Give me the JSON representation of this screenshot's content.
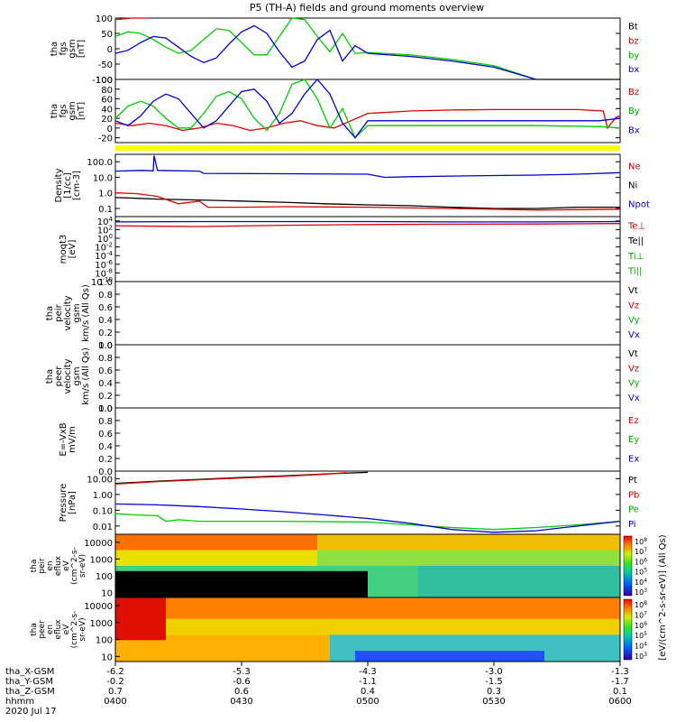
{
  "chart_data": {
    "type": "line",
    "title": "P5 (TH-A) fields and ground moments overview",
    "x_ticks": [
      "0400",
      "0430",
      "0500",
      "0530",
      "0600"
    ],
    "x_range_minutes": [
      0,
      120
    ],
    "ephemeris": {
      "labels": [
        "tha_X-GSM",
        "tha_Y-GSM",
        "tha_Z-GSM",
        "hhmm",
        "2020 Jul 17"
      ],
      "x_gsm": [
        "-6.2",
        "-5.3",
        "-4.3",
        "-3.0",
        "-1.3"
      ],
      "y_gsm": [
        "-0.2",
        "-0.6",
        "-1.1",
        "-1.5",
        "-1.7"
      ],
      "z_gsm": [
        "0.7",
        "0.6",
        "0.4",
        "0.3",
        "0.1"
      ]
    },
    "panels": [
      {
        "id": "fgs_gsm",
        "ylabel": [
          "tha",
          "fgs",
          "gsm",
          "[nT]"
        ],
        "ticks": [
          "100",
          "50",
          "0",
          "-50",
          "-100"
        ],
        "ylim": [
          -100,
          100
        ],
        "scale": "linear",
        "legend": [
          {
            "label": "Bt",
            "color": "#000000"
          },
          {
            "label": "bz",
            "color": "#cc0000"
          },
          {
            "label": "by",
            "color": "#00aa00"
          },
          {
            "label": "bx",
            "color": "#0000cc"
          }
        ],
        "series": [
          {
            "name": "bz",
            "color": "#dd0000",
            "x": [
              0,
              4,
              8
            ],
            "y": [
              95,
              102,
              110
            ]
          },
          {
            "name": "by",
            "color": "#00cc00",
            "x": [
              0,
              3,
              6,
              9,
              12,
              15,
              18,
              21,
              24,
              27,
              30,
              33,
              36,
              39,
              42,
              45,
              48,
              51,
              54,
              57,
              60,
              70,
              80,
              90,
              100
            ],
            "y": [
              40,
              55,
              50,
              30,
              5,
              -15,
              -5,
              30,
              65,
              60,
              20,
              -20,
              -20,
              40,
              100,
              95,
              40,
              -10,
              50,
              -15,
              -12,
              -20,
              -35,
              -55,
              -100
            ]
          },
          {
            "name": "bx",
            "color": "#0000cc",
            "x": [
              0,
              3,
              6,
              9,
              12,
              15,
              18,
              21,
              24,
              27,
              30,
              33,
              36,
              39,
              42,
              45,
              48,
              51,
              54,
              57,
              60,
              70,
              80,
              90,
              100,
              120
            ],
            "y": [
              -15,
              -5,
              20,
              40,
              35,
              5,
              -25,
              -45,
              -30,
              15,
              55,
              75,
              50,
              -10,
              -60,
              -40,
              30,
              60,
              -40,
              10,
              -15,
              -25,
              -40,
              -60,
              -100,
              -100
            ]
          }
        ]
      },
      {
        "id": "fgs_gsm_2",
        "ylabel": [
          "tha",
          "fgs",
          "gsm",
          "[nT]"
        ],
        "ticks": [
          "100",
          "80",
          "60",
          "40",
          "20",
          "0",
          "-20"
        ],
        "ylim": [
          -30,
          100
        ],
        "scale": "linear",
        "legend": [
          {
            "label": "Bz",
            "color": "#cc0000"
          },
          {
            "label": "By",
            "color": "#00aa00"
          },
          {
            "label": "Bx",
            "color": "#0000cc"
          }
        ],
        "series": [
          {
            "name": "Bz",
            "color": "#dd0000",
            "x": [
              0,
              4,
              8,
              12,
              16,
              20,
              24,
              28,
              32,
              36,
              40,
              44,
              48,
              52,
              56,
              60,
              70,
              80,
              90,
              100,
              110,
              116,
              117,
              119,
              120
            ],
            "y": [
              10,
              5,
              10,
              5,
              -5,
              0,
              10,
              5,
              -5,
              0,
              10,
              15,
              5,
              0,
              15,
              30,
              35,
              37,
              38,
              38,
              38,
              35,
              0,
              22,
              25
            ]
          },
          {
            "name": "By",
            "color": "#00cc00",
            "x": [
              0,
              3,
              6,
              9,
              12,
              15,
              18,
              21,
              24,
              27,
              30,
              33,
              36,
              39,
              42,
              45,
              48,
              51,
              54,
              57,
              60,
              80,
              100,
              115,
              120
            ],
            "y": [
              20,
              45,
              55,
              45,
              20,
              0,
              0,
              30,
              65,
              75,
              60,
              20,
              -5,
              30,
              90,
              100,
              60,
              0,
              40,
              -20,
              5,
              5,
              5,
              3,
              0
            ]
          },
          {
            "name": "Bx",
            "color": "#0000cc",
            "x": [
              0,
              3,
              6,
              9,
              12,
              15,
              18,
              21,
              24,
              27,
              30,
              33,
              36,
              39,
              42,
              45,
              48,
              51,
              54,
              57,
              60,
              80,
              100,
              115,
              120
            ],
            "y": [
              15,
              5,
              25,
              55,
              70,
              60,
              30,
              0,
              15,
              45,
              75,
              80,
              55,
              10,
              30,
              70,
              100,
              70,
              10,
              -20,
              15,
              15,
              15,
              15,
              20
            ]
          }
        ]
      },
      {
        "id": "density",
        "ylabel": [
          "Density",
          "[1/cc]",
          "[cm-3]"
        ],
        "ticks": [
          "100.0",
          "10.0",
          "1.0",
          "0.1"
        ],
        "ylim": [
          0.03,
          300
        ],
        "scale": "log",
        "legend": [
          {
            "label": "Ne",
            "color": "#cc0000"
          },
          {
            "label": "Ni",
            "color": "#000000"
          },
          {
            "label": "Npot",
            "color": "#0000cc"
          }
        ],
        "series": [
          {
            "name": "Npot",
            "color": "#0000cc",
            "x": [
              0,
              6,
              9,
              9.2,
              10,
              20,
              21,
              40,
              60,
              64,
              70,
              80,
              90,
              100,
              110,
              120
            ],
            "y": [
              25,
              28,
              26,
              250,
              28,
              25,
              18,
              17,
              16,
              10,
              11,
              12,
              13,
              14,
              16,
              20
            ]
          },
          {
            "name": "Ni",
            "color": "#000000",
            "x": [
              0,
              5,
              10,
              20,
              30,
              40,
              50,
              60,
              70,
              80,
              90,
              100,
              110,
              120
            ],
            "y": [
              0.5,
              0.45,
              0.4,
              0.35,
              0.3,
              0.25,
              0.2,
              0.17,
              0.15,
              0.12,
              0.1,
              0.1,
              0.12,
              0.12
            ]
          },
          {
            "name": "Ne",
            "color": "#dd0000",
            "x": [
              0,
              5,
              10,
              15,
              20,
              22,
              30,
              40,
              60,
              80,
              100,
              120
            ],
            "y": [
              1.0,
              0.9,
              0.6,
              0.2,
              0.3,
              0.12,
              0.12,
              0.13,
              0.12,
              0.1,
              0.08,
              0.09
            ]
          }
        ]
      },
      {
        "id": "moqt3",
        "ylabel": [
          "moqt3",
          "[eV]"
        ],
        "ticks": [
          "10^4",
          "10^2",
          "10^0",
          "10^-2",
          "10^-4",
          "10^-6",
          "10^-8",
          "10^-10"
        ],
        "ylim": [
          1e-10,
          100000.0
        ],
        "scale": "log",
        "legend": [
          {
            "label": "Te⊥",
            "color": "#cc0000"
          },
          {
            "label": "Te||",
            "color": "#000000"
          },
          {
            "label": "Ti⊥",
            "color": "#00aa00"
          },
          {
            "label": "Ti||",
            "color": "#00aa00"
          }
        ],
        "series": [
          {
            "name": "Te⊥",
            "color": "#dd0000",
            "x": [
              0,
              10,
              20,
              40,
              60,
              80,
              100,
              120
            ],
            "y": [
              800,
              600,
              500,
              1000,
              1500,
              1800,
              2000,
              2500
            ]
          },
          {
            "name": "Ti⊥",
            "color": "#0000cc",
            "x": [
              0,
              20,
              40,
              60,
              80,
              100,
              120
            ],
            "y": [
              6000,
              7000,
              7000,
              7000,
              6000,
              6000,
              7000
            ]
          }
        ]
      },
      {
        "id": "peir_velocity",
        "ylabel": [
          "tha",
          "peir",
          "velocity",
          "gsm",
          "km/s (All Qs)"
        ],
        "ticks": [
          "1.0",
          "0.8",
          "0.6",
          "0.4",
          "0.2",
          "0.0"
        ],
        "ylim": [
          0,
          1
        ],
        "scale": "linear",
        "legend": [
          {
            "label": "Vt",
            "color": "#000000"
          },
          {
            "label": "Vz",
            "color": "#cc0000"
          },
          {
            "label": "Vy",
            "color": "#00aa00"
          },
          {
            "label": "Vx",
            "color": "#0000cc"
          }
        ],
        "series": []
      },
      {
        "id": "peer_velocity",
        "ylabel": [
          "tha",
          "peer",
          "velocity",
          "gsm",
          "km/s (All Qs)"
        ],
        "ticks": [
          "1.0",
          "0.8",
          "0.6",
          "0.4",
          "0.2",
          "0.0"
        ],
        "ylim": [
          0,
          1
        ],
        "scale": "linear",
        "legend": [
          {
            "label": "Vt",
            "color": "#000000"
          },
          {
            "label": "Vz",
            "color": "#cc0000"
          },
          {
            "label": "Vy",
            "color": "#00aa00"
          },
          {
            "label": "Vx",
            "color": "#0000cc"
          }
        ],
        "series": []
      },
      {
        "id": "e_field",
        "ylabel": [
          "E=-VxB",
          "mV/m"
        ],
        "ticks": [
          "1.0",
          "0.8",
          "0.6",
          "0.4",
          "0.2",
          "0.0"
        ],
        "ylim": [
          0,
          1
        ],
        "scale": "linear",
        "legend": [
          {
            "label": "Ez",
            "color": "#cc0000"
          },
          {
            "label": "Ey",
            "color": "#00aa00"
          },
          {
            "label": "Ex",
            "color": "#0000cc"
          }
        ],
        "series": []
      },
      {
        "id": "pressure",
        "ylabel": [
          "Pressure",
          "[nPa]"
        ],
        "ticks": [
          "10.00",
          "1.00",
          "0.10",
          "0.01"
        ],
        "ylim": [
          0.003,
          30
        ],
        "scale": "log",
        "legend": [
          {
            "label": "Pt",
            "color": "#000000"
          },
          {
            "label": "Pb",
            "color": "#cc0000"
          },
          {
            "label": "Pe",
            "color": "#00aa00"
          },
          {
            "label": "Pi",
            "color": "#0000cc"
          }
        ],
        "series": [
          {
            "name": "Pt",
            "color": "#000000",
            "x": [
              0,
              10,
              20,
              30,
              40,
              50,
              60
            ],
            "y": [
              5,
              7,
              9,
              12,
              15,
              20,
              25
            ]
          },
          {
            "name": "Pb",
            "color": "#dd0000",
            "x": [
              0,
              10,
              20,
              30,
              40,
              50,
              55
            ],
            "y": [
              4.5,
              6.5,
              8.5,
              11,
              14,
              19,
              24
            ]
          },
          {
            "name": "Pe",
            "color": "#00cc00",
            "x": [
              0,
              5,
              10,
              12,
              15,
              20,
              30,
              40,
              60,
              70,
              80,
              90,
              100,
              110,
              120
            ],
            "y": [
              0.06,
              0.05,
              0.045,
              0.02,
              0.025,
              0.02,
              0.02,
              0.02,
              0.018,
              0.012,
              0.008,
              0.006,
              0.008,
              0.012,
              0.02
            ]
          },
          {
            "name": "Pi",
            "color": "#0000cc",
            "x": [
              0,
              10,
              20,
              30,
              40,
              50,
              60,
              70,
              80,
              90,
              100,
              110,
              120
            ],
            "y": [
              0.25,
              0.22,
              0.17,
              0.12,
              0.08,
              0.05,
              0.03,
              0.015,
              0.006,
              0.004,
              0.005,
              0.01,
              0.02
            ]
          }
        ]
      }
    ],
    "spectrograms": [
      {
        "id": "peir_en_eflux",
        "ylabel": [
          "tha",
          "peir",
          "en",
          "eflux",
          "eV",
          "(cm^2-s-",
          "sr-eV)"
        ],
        "ticks": [
          "10000",
          "1000",
          "100",
          "10"
        ],
        "ylim": [
          5,
          30000
        ],
        "colorbar_label": "[eV/(cm^2-s-sr-eV)] (All Qs)"
      },
      {
        "id": "peer_en_eflux",
        "ylabel": [
          "tha",
          "peer",
          "en",
          "eflux",
          "eV",
          "(cm^2-s-",
          "sr-eV)"
        ],
        "ticks": [
          "10000",
          "1000",
          "100",
          "10"
        ],
        "ylim": [
          5,
          30000
        ],
        "colorbar_label": "[eV/(cm^2-s-sr-eV)] (All Qs)"
      }
    ],
    "colorbar_ticks": [
      "10^8",
      "10^7",
      "10^6",
      "10^5",
      "10^4",
      "10^3"
    ]
  }
}
